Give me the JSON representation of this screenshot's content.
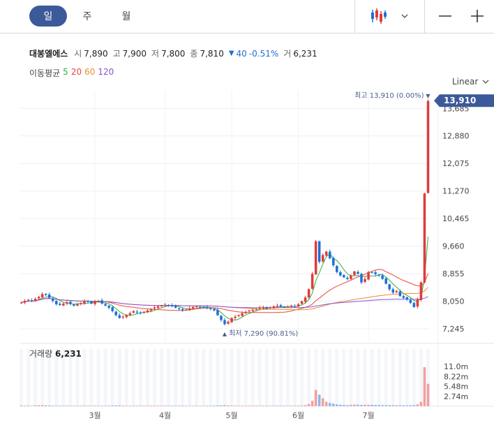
{
  "toolbar": {
    "periods": [
      "일",
      "주",
      "월"
    ],
    "active_period": "일",
    "chart_type_icon": "candlestick-icon",
    "dropdown_icon": "chevron-down-icon",
    "minus_icon": "zoom-out-icon",
    "plus_icon": "zoom-in-icon"
  },
  "stock": {
    "name": "대봉엘에스",
    "open_label": "시",
    "open": "7,890",
    "high_label": "고",
    "high": "7,900",
    "low_label": "저",
    "low": "7,800",
    "close_label": "종",
    "close": "7,810",
    "change_arrow": "▼",
    "change": "40",
    "change_pct": "-0.51%",
    "volume_label": "거",
    "volume": "6,231"
  },
  "moving_average": {
    "label": "이동평균",
    "periods": [
      {
        "value": "5",
        "color": "#2eae3b"
      },
      {
        "value": "20",
        "color": "#e8483b"
      },
      {
        "value": "60",
        "color": "#ee8c2a"
      },
      {
        "value": "120",
        "color": "#8a4fd8"
      }
    ]
  },
  "scale": {
    "label": "Linear"
  },
  "colors": {
    "up": "#e03b3b",
    "down": "#1e6fd9",
    "accent": "#3c5a99"
  },
  "chart_data": {
    "type": "candlestick",
    "x_ticks": [
      {
        "label": "3월",
        "index": 21
      },
      {
        "label": "4월",
        "index": 41
      },
      {
        "label": "5월",
        "index": 60
      },
      {
        "label": "6월",
        "index": 79
      },
      {
        "label": "7월",
        "index": 99
      }
    ],
    "price_axis": {
      "ylim": [
        6900,
        14200
      ],
      "ticks": [
        "13,685",
        "12,880",
        "12,075",
        "11,270",
        "10,465",
        "9,660",
        "8,855",
        "8,050",
        "7,245"
      ],
      "current_price": "13,910"
    },
    "annotations": {
      "high_text": "최고 13,910 (0.00%)",
      "high_marker": "▼",
      "high_price": 13910,
      "high_index": 116,
      "low_text": "최저 7,290 (90.81%)",
      "low_marker": "▲",
      "low_price": 7290,
      "low_index": 58
    },
    "closes": [
      8010,
      8060,
      8090,
      8050,
      8120,
      8180,
      8260,
      8230,
      8150,
      8060,
      7960,
      7940,
      7980,
      8020,
      7970,
      7920,
      7960,
      8000,
      8050,
      8030,
      7980,
      8040,
      8060,
      7980,
      7920,
      7860,
      7760,
      7640,
      7560,
      7600,
      7650,
      7700,
      7760,
      7720,
      7700,
      7740,
      7780,
      7820,
      7870,
      7900,
      7920,
      7950,
      7930,
      7900,
      7860,
      7820,
      7780,
      7800,
      7840,
      7880,
      7900,
      7880,
      7860,
      7860,
      7820,
      7780,
      7640,
      7500,
      7380,
      7450,
      7560,
      7600,
      7640,
      7700,
      7740,
      7780,
      7800,
      7820,
      7860,
      7880,
      7840,
      7860,
      7900,
      7920,
      7900,
      7880,
      7880,
      7920,
      7900,
      7960,
      8050,
      8160,
      8400,
      8850,
      9800,
      9200,
      9400,
      9500,
      9300,
      9100,
      8900,
      8800,
      8750,
      8700,
      8800,
      8920,
      8850,
      8600,
      8700,
      8900,
      8880,
      8840,
      8800,
      8700,
      8560,
      8400,
      8300,
      8350,
      8200,
      8150,
      8100,
      8000,
      7880,
      8100,
      8600,
      11200,
      13900
    ],
    "volume_axis": {
      "max": 12000000,
      "ticks": [
        "11.0m",
        "8.22m",
        "5.48m",
        "2.74m"
      ],
      "tick_values": [
        11000000,
        8220000,
        5480000,
        2740000
      ]
    },
    "volume_label": "거래량",
    "volume_value": "6,231",
    "volumes": [
      200000,
      150000,
      180000,
      120000,
      220000,
      260000,
      300000,
      240000,
      180000,
      150000,
      140000,
      130000,
      120000,
      160000,
      140000,
      120000,
      130000,
      150000,
      170000,
      140000,
      120000,
      160000,
      150000,
      130000,
      120000,
      140000,
      180000,
      200000,
      220000,
      160000,
      150000,
      140000,
      150000,
      130000,
      120000,
      130000,
      140000,
      150000,
      160000,
      150000,
      140000,
      150000,
      130000,
      120000,
      130000,
      140000,
      150000,
      130000,
      120000,
      130000,
      140000,
      120000,
      110000,
      130000,
      140000,
      160000,
      200000,
      250000,
      280000,
      220000,
      180000,
      160000,
      150000,
      150000,
      140000,
      150000,
      160000,
      150000,
      140000,
      150000,
      140000,
      130000,
      150000,
      160000,
      150000,
      140000,
      130000,
      150000,
      140000,
      160000,
      200000,
      300000,
      600000,
      1500000,
      4500000,
      3200000,
      2200000,
      1200000,
      900000,
      700000,
      500000,
      400000,
      350000,
      300000,
      380000,
      450000,
      400000,
      350000,
      380000,
      420000,
      390000,
      350000,
      330000,
      310000,
      300000,
      290000,
      270000,
      280000,
      260000,
      250000,
      240000,
      260000,
      300000,
      500000,
      1200000,
      10800000,
      6200000
    ]
  }
}
